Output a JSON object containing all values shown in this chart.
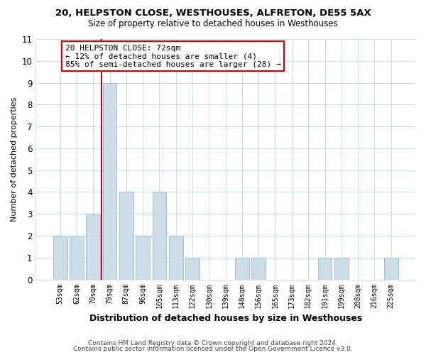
{
  "title1": "20, HELPSTON CLOSE, WESTHOUSES, ALFRETON, DE55 5AX",
  "title2": "Size of property relative to detached houses in Westhouses",
  "xlabel": "Distribution of detached houses by size in Westhouses",
  "ylabel": "Number of detached properties",
  "bar_labels": [
    "53sqm",
    "62sqm",
    "70sqm",
    "79sqm",
    "87sqm",
    "96sqm",
    "105sqm",
    "113sqm",
    "122sqm",
    "130sqm",
    "139sqm",
    "148sqm",
    "156sqm",
    "165sqm",
    "173sqm",
    "182sqm",
    "191sqm",
    "199sqm",
    "208sqm",
    "216sqm",
    "225sqm"
  ],
  "bar_values": [
    2,
    2,
    3,
    9,
    4,
    2,
    4,
    2,
    1,
    0,
    0,
    1,
    1,
    0,
    0,
    0,
    1,
    1,
    0,
    0,
    1
  ],
  "bar_color": "#ccdde8",
  "bar_edge_color": "#99bbcc",
  "vline_color": "#cc0000",
  "annotation_title": "20 HELPSTON CLOSE: 72sqm",
  "annotation_line1": "← 12% of detached houses are smaller (4)",
  "annotation_line2": "85% of semi-detached houses are larger (28) →",
  "annotation_box_color": "#ffffff",
  "annotation_box_edge": "#cc0000",
  "ylim": [
    0,
    11
  ],
  "yticks": [
    0,
    1,
    2,
    3,
    4,
    5,
    6,
    7,
    8,
    9,
    10,
    11
  ],
  "grid_color": "#ccdde8",
  "footer1": "Contains HM Land Registry data © Crown copyright and database right 2024.",
  "footer2": "Contains public sector information licensed under the Open Government Licence v3.0."
}
